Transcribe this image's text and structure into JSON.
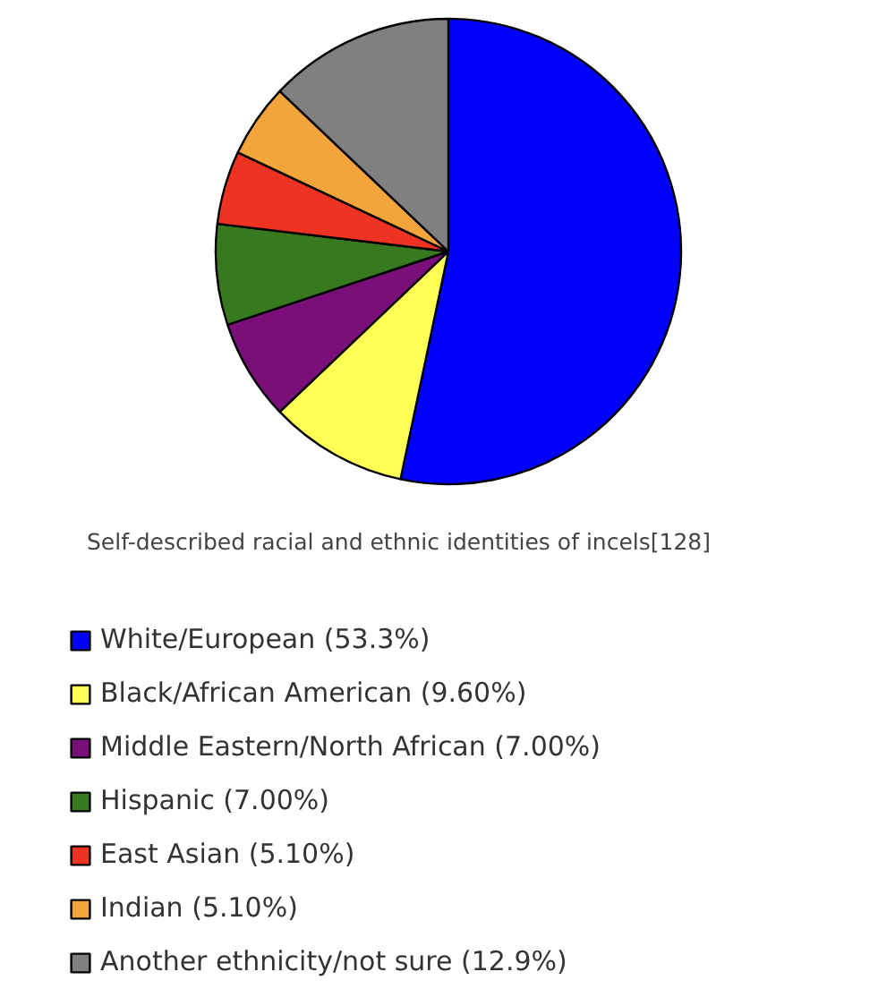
{
  "chart_data": {
    "type": "pie",
    "title": "Self-described racial and ethnic identities of incels[128]",
    "categories": [
      "White/European",
      "Black/African American",
      "Middle Eastern/North African",
      "Hispanic",
      "East Asian",
      "Indian",
      "Another ethnicity/not sure"
    ],
    "values": [
      53.3,
      9.6,
      7.0,
      7.0,
      5.1,
      5.1,
      12.9
    ],
    "value_labels": [
      "(53.3%)",
      "(9.60%)",
      "(7.00%)",
      "(7.00%)",
      "(5.10%)",
      "(5.10%)",
      "(12.9%)"
    ],
    "colors": [
      "#0000ff",
      "#ffff55",
      "#7a0f7a",
      "#38791f",
      "#ee3322",
      "#f3a43a",
      "#808080"
    ],
    "legend": "bottom"
  }
}
